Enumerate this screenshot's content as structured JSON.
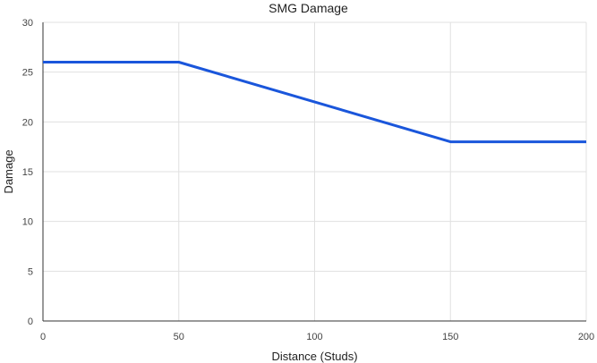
{
  "chart_data": {
    "type": "line",
    "title": "SMG Damage",
    "xlabel": "Distance (Studs)",
    "ylabel": "Damage",
    "xlim": [
      0,
      200
    ],
    "ylim": [
      0,
      30
    ],
    "x_ticks": [
      0,
      50,
      100,
      150,
      200
    ],
    "y_ticks": [
      0,
      5,
      10,
      15,
      20,
      25,
      30
    ],
    "grid": true,
    "legend": "none",
    "series": [
      {
        "color": "#1a56db",
        "x": [
          0,
          50,
          150,
          200
        ],
        "y": [
          26,
          26,
          18,
          18
        ]
      }
    ]
  }
}
